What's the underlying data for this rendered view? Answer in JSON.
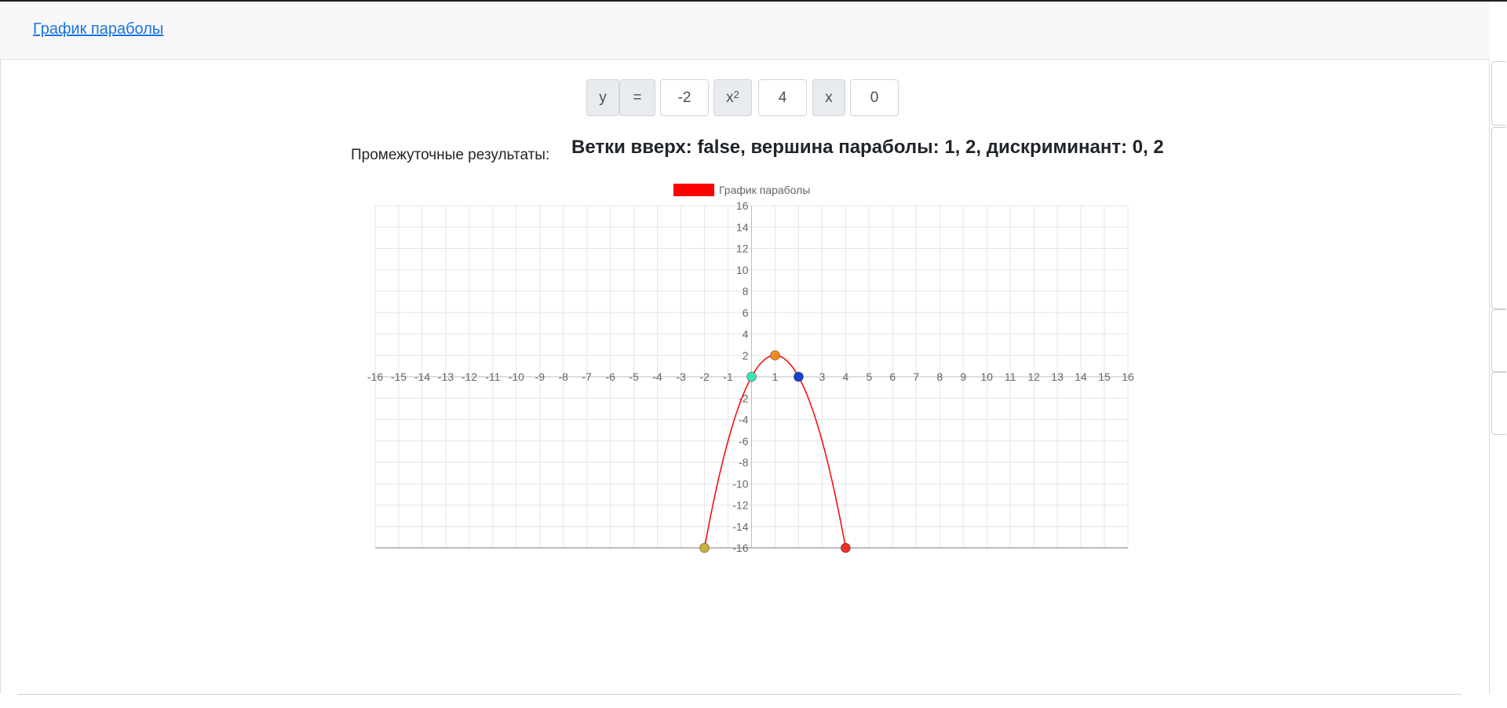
{
  "navbar": {
    "brand": "График параболы"
  },
  "equation": {
    "y_label": "y",
    "equals_label": "=",
    "a_value": "-2",
    "x2_label": "x",
    "x2_exp": "2",
    "b_value": "4",
    "x_label": "x",
    "c_value": "0"
  },
  "results": {
    "label": "Промежуточные результаты:",
    "text": "Ветки вверх: false, вершина параболы: 1, 2, дискриминант: 0, 2"
  },
  "chart_data": {
    "type": "line",
    "legend": [
      "График параболы"
    ],
    "legend_placement": "top",
    "series": [
      {
        "name": "График параболы",
        "color": "#ff0000",
        "x": [
          -2,
          -1.5,
          -1,
          -0.5,
          0,
          0.5,
          1,
          1.5,
          2,
          2.5,
          3,
          3.5,
          4
        ],
        "y": [
          -16,
          -10.5,
          -6,
          -2.5,
          0,
          1.5,
          2,
          1.5,
          0,
          -2.5,
          -6,
          -10.5,
          -16
        ]
      }
    ],
    "points": [
      {
        "x": -2,
        "y": -16,
        "color": "#c9b13a"
      },
      {
        "x": 0,
        "y": 0,
        "color": "#3ee3b5"
      },
      {
        "x": 1,
        "y": 2,
        "color": "#f5891f"
      },
      {
        "x": 2,
        "y": 0,
        "color": "#1a3fd1"
      },
      {
        "x": 4,
        "y": -16,
        "color": "#e8342a"
      }
    ],
    "xlim": [
      -16,
      16
    ],
    "ylim": [
      -16,
      16
    ],
    "x_ticks": [
      -16,
      -15,
      -14,
      -13,
      -12,
      -11,
      -10,
      -9,
      -8,
      -7,
      -6,
      -5,
      -4,
      -3,
      -2,
      -1,
      1,
      2,
      3,
      4,
      5,
      6,
      7,
      8,
      9,
      10,
      11,
      12,
      13,
      14,
      15,
      16
    ],
    "y_ticks": [
      16,
      14,
      12,
      10,
      8,
      6,
      4,
      2,
      -2,
      -4,
      -6,
      -8,
      -10,
      -12,
      -14,
      -16
    ],
    "grid": true,
    "colors": {
      "grid": "#e5e5e5",
      "axis": "#bdbdbd",
      "tick_text": "#666666",
      "line": "#ff0000"
    }
  }
}
